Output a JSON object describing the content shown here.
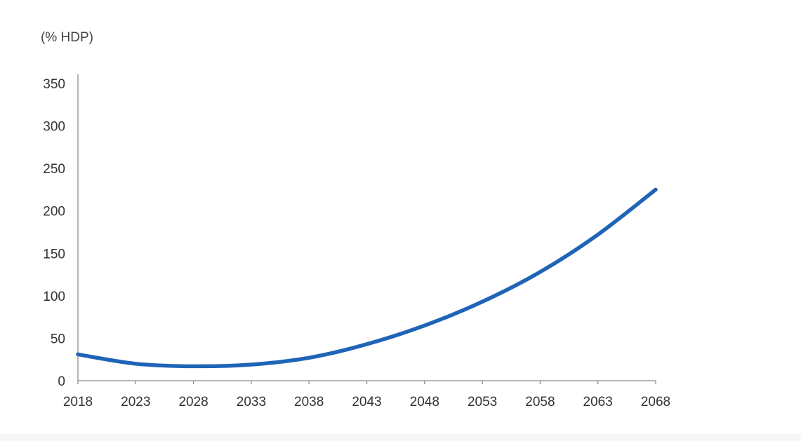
{
  "chart_data": {
    "type": "line",
    "title": "",
    "xlabel": "",
    "ylabel": "(% HDP)",
    "x": [
      2018,
      2023,
      2028,
      2033,
      2038,
      2043,
      2048,
      2053,
      2058,
      2063,
      2068
    ],
    "x_tick_labels": [
      "2018",
      "2023",
      "2028",
      "2033",
      "2038",
      "2043",
      "2048",
      "2053",
      "2058",
      "2063",
      "2068"
    ],
    "y_ticks": [
      0,
      50,
      100,
      150,
      200,
      250,
      300,
      350
    ],
    "y_tick_labels": [
      "0",
      "50",
      "100",
      "150",
      "200",
      "250",
      "300",
      "350"
    ],
    "ylim": [
      0,
      350
    ],
    "xlim": [
      2018,
      2068
    ],
    "grid": false,
    "legend": "none",
    "series": [
      {
        "color": "#1f64b7",
        "values": [
          31,
          20,
          17,
          19,
          27,
          43,
          65,
          93,
          128,
          172,
          225
        ]
      }
    ]
  }
}
